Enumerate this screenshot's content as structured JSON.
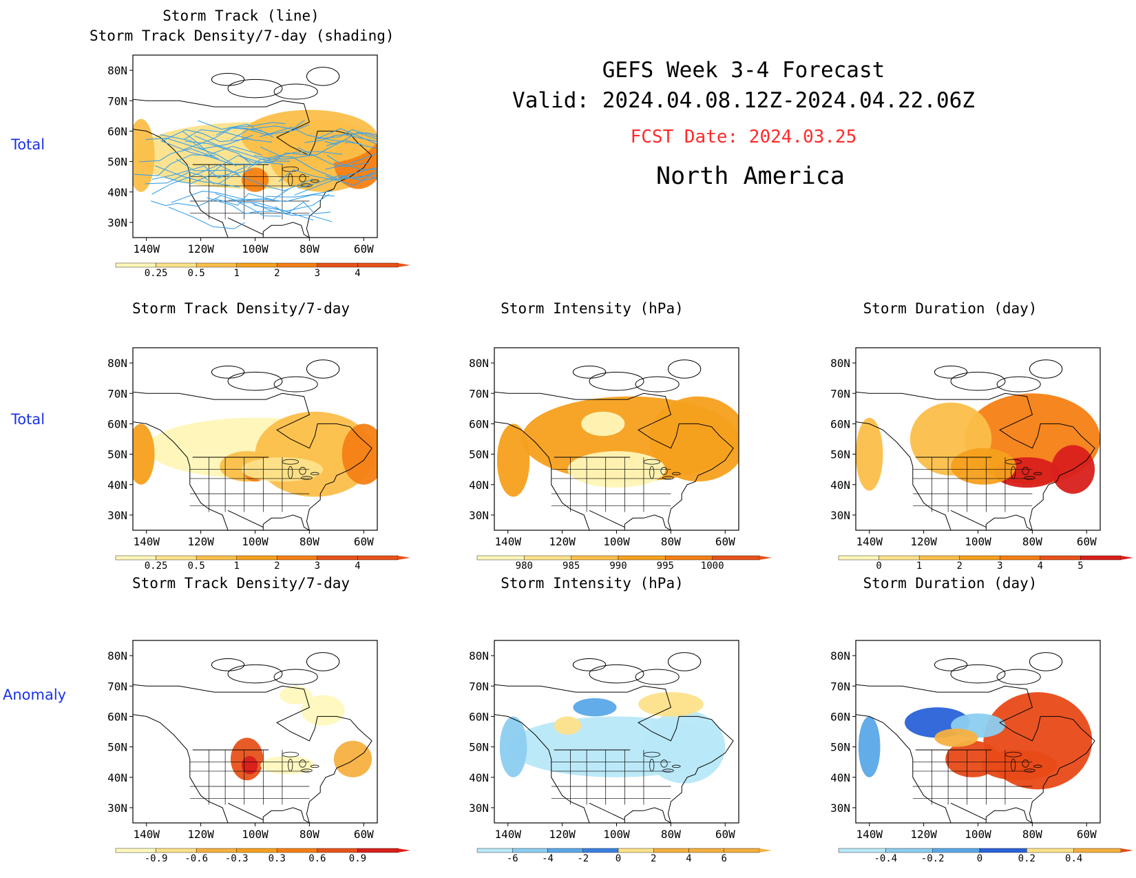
{
  "header": {
    "title": "GEFS Week 3-4 Forecast",
    "valid": "Valid: 2024.04.08.12Z-2024.04.22.06Z",
    "fcst_date": "FCST Date: 2024.03.25",
    "region": "North America"
  },
  "row_labels": {
    "row1": "Total",
    "row2": "Total",
    "row3": "Anomaly"
  },
  "colors": {
    "row_label": "#1a33e6",
    "fcst_date": "#ff2a2a",
    "track_line": "#3aa0e8"
  },
  "axes": {
    "lat_ticks": [
      "80N",
      "70N",
      "60N",
      "50N",
      "40N",
      "30N"
    ],
    "lon_ticks": [
      "140W",
      "120W",
      "100W",
      "80W",
      "60W"
    ]
  },
  "panels": {
    "p_track": {
      "title_line1": "Storm Track (line)",
      "title_line2": "Storm Track Density/7-day (shading)",
      "colorbar": [
        "0.25",
        "0.5",
        "1",
        "2",
        "3",
        "4"
      ]
    },
    "p_density": {
      "title": "Storm Track Density/7-day",
      "colorbar": [
        "0.25",
        "0.5",
        "1",
        "2",
        "3",
        "4"
      ]
    },
    "p_intensity": {
      "title": "Storm Intensity (hPa)",
      "colorbar": [
        "980",
        "985",
        "990",
        "995",
        "1000"
      ]
    },
    "p_duration": {
      "title": "Storm Duration (day)",
      "colorbar": [
        "0",
        "1",
        "2",
        "3",
        "4",
        "5"
      ]
    },
    "a_density": {
      "title": "Storm Track Density/7-day",
      "colorbar": [
        "-0.9",
        "-0.6",
        "-0.3",
        "0.3",
        "0.6",
        "0.9"
      ]
    },
    "a_intensity": {
      "title": "Storm Intensity (hPa)",
      "colorbar": [
        "-6",
        "-4",
        "-2",
        "0",
        "2",
        "4",
        "6"
      ]
    },
    "a_duration": {
      "title": "Storm Duration (day)",
      "colorbar": [
        "-0.4",
        "-0.2",
        "0",
        "0.2",
        "0.4"
      ]
    }
  }
}
